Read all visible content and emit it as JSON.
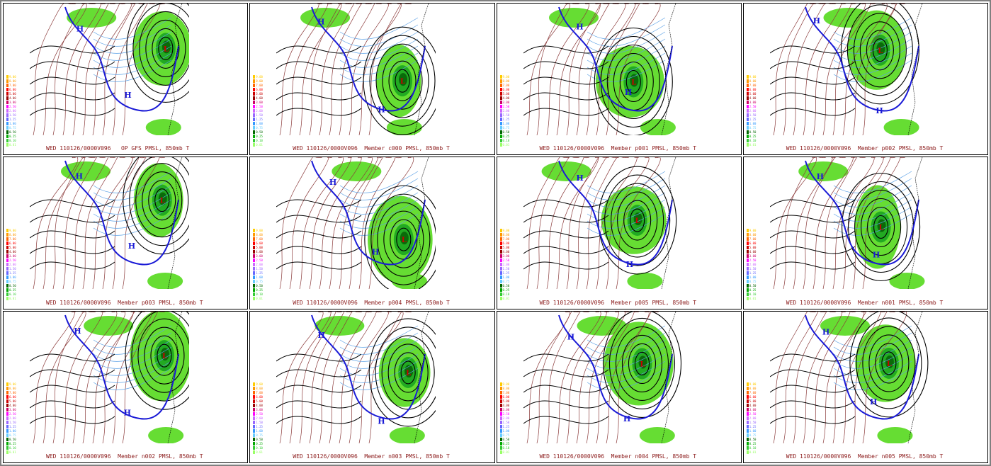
{
  "panels": [
    {
      "caption": "WED 110126/0000V096   OP GFS PMSL, 850mb T"
    },
    {
      "caption": "WED 110126/0000V096  Member c000 PMSL, 850mb T"
    },
    {
      "caption": "WED 110126/0000V096  Member p001 PMSL, 850mb T"
    },
    {
      "caption": "WED 110126/0000V096  Member p002 PMSL, 850mb T"
    },
    {
      "caption": "WED 110126/0000V096  Member p003 PMSL, 850mb T"
    },
    {
      "caption": "WED 110126/0000V096  Member p004 PMSL, 850mb T"
    },
    {
      "caption": "WED 110126/0000V096  Member p005 PMSL, 850mb T"
    },
    {
      "caption": "WED 110126/0000V096  Member n001 PMSL, 850mb T"
    },
    {
      "caption": "WED 110126/0000V096  Member n002 PMSL, 850mb T"
    },
    {
      "caption": "WED 110126/0000V096  Member n003 PMSL, 850mb T"
    },
    {
      "caption": "WED 110126/0000V096  Member n004 PMSL, 850mb T"
    },
    {
      "caption": "WED 110126/0000V096  Member n005 PMSL, 850mb T"
    }
  ],
  "legend": [
    {
      "label": "9.00",
      "color": "#ffcc00"
    },
    {
      "label": "8.00",
      "color": "#ff9900"
    },
    {
      "label": "7.00",
      "color": "#ff6600"
    },
    {
      "label": "6.00",
      "color": "#ff0000"
    },
    {
      "label": "5.00",
      "color": "#cc0000"
    },
    {
      "label": "4.00",
      "color": "#990000"
    },
    {
      "label": "3.00",
      "color": "#cc0066"
    },
    {
      "label": "2.50",
      "color": "#ff00ff"
    },
    {
      "label": "2.00",
      "color": "#cc66ff"
    },
    {
      "label": "1.50",
      "color": "#9966ff"
    },
    {
      "label": "1.25",
      "color": "#6666ff"
    },
    {
      "label": "1.00",
      "color": "#3399ff"
    },
    {
      "label": "0.75",
      "color": "#66ccff"
    },
    {
      "label": "0.50",
      "color": "#006600"
    },
    {
      "label": "0.25",
      "color": "#00aa00"
    },
    {
      "label": "0.10",
      "color": "#33cc33"
    },
    {
      "label": "0.01",
      "color": "#99ff66"
    }
  ],
  "colors": {
    "caption": "#8b1a1a",
    "precip": "#66dd33",
    "isobar": "#000000",
    "isotherm": "#8b3a3a",
    "zero_line": "#1a1ad6",
    "cold_line": "#5aa0e6",
    "high": "#1a1ad6",
    "low": "#cc0000"
  }
}
